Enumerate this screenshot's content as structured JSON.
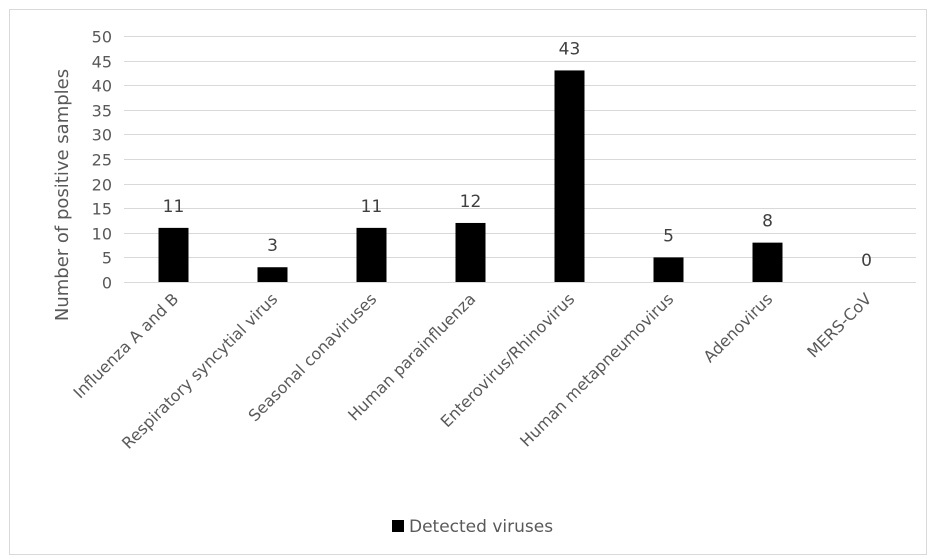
{
  "chart_data": {
    "type": "bar",
    "title": "",
    "xlabel": "",
    "ylabel": "Number of positive samples",
    "ylim": [
      0,
      50
    ],
    "yticks": [
      0,
      5,
      10,
      15,
      20,
      25,
      30,
      35,
      40,
      45,
      50
    ],
    "grid": true,
    "legend_position": "bottom",
    "categories": [
      "Influenza A and B",
      "Respiratory syncytial virus",
      "Seasonal conaviruses",
      "Human parainfluenza",
      "Enterovirus/Rhinovirus",
      "Human metapneumovirus",
      "Adenovirus",
      "MERS-CoV"
    ],
    "series": [
      {
        "name": "Detected viruses",
        "color": "#000000",
        "values": [
          11,
          3,
          11,
          12,
          43,
          5,
          8,
          0
        ]
      }
    ]
  }
}
